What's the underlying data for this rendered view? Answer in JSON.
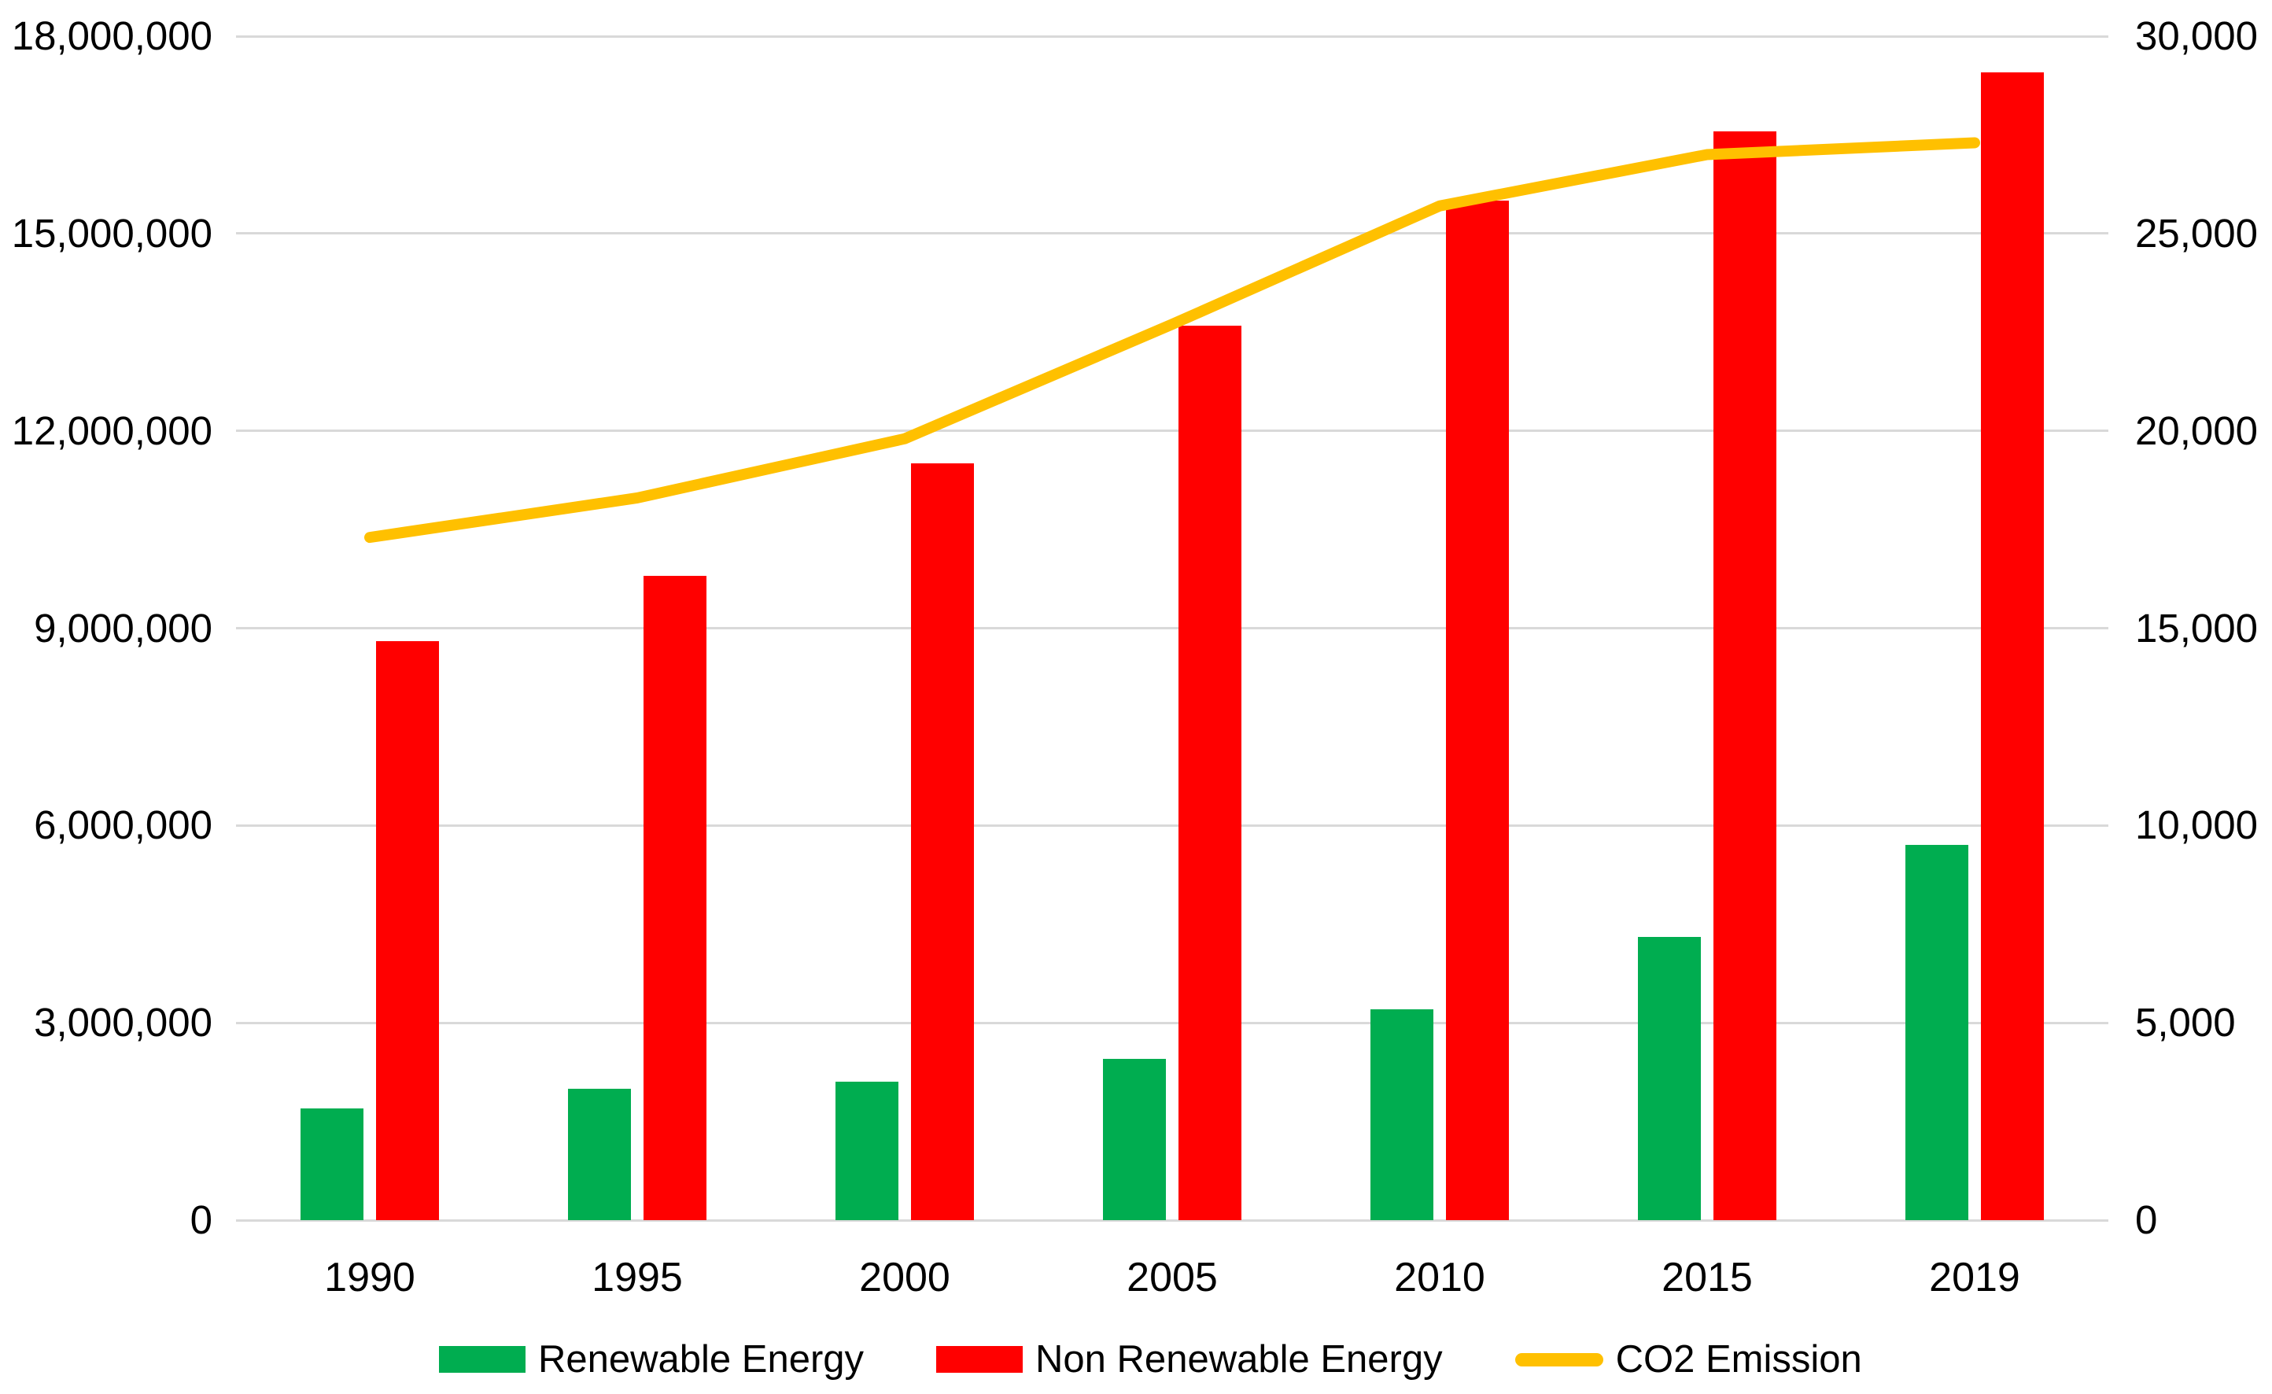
{
  "chart_data": {
    "type": "combo_bar_line",
    "categories": [
      "1990",
      "1995",
      "2000",
      "2005",
      "2010",
      "2015",
      "2019"
    ],
    "series": [
      {
        "name": "Renewable Energy",
        "type": "bar",
        "axis": "left",
        "color": "#00AD50",
        "values": [
          1700000,
          2000000,
          2100000,
          2450000,
          3200000,
          4300000,
          5700000
        ]
      },
      {
        "name": "Non Renewable Energy",
        "type": "bar",
        "axis": "left",
        "color": "#FF0000",
        "values": [
          8800000,
          9800000,
          11500000,
          13600000,
          15500000,
          16550000,
          17450000
        ]
      },
      {
        "name": "CO2 Emission",
        "type": "line",
        "axis": "right",
        "color": "#FFC000",
        "values": [
          17300,
          18300,
          19800,
          22700,
          25700,
          27000,
          27300
        ]
      }
    ],
    "left_axis": {
      "min": 0,
      "max": 18000000,
      "tick_step": 3000000,
      "tick_labels": [
        "0",
        "3,000,000",
        "6,000,000",
        "9,000,000",
        "12,000,000",
        "15,000,000",
        "18,000,000"
      ]
    },
    "right_axis": {
      "min": 0,
      "max": 30000,
      "tick_step": 5000,
      "tick_labels": [
        "0",
        "5,000",
        "10,000",
        "15,000",
        "20,000",
        "25,000",
        "30,000"
      ]
    },
    "grid": true,
    "gridline_color": "#D9D9D9",
    "background": "#FFFFFF",
    "legend_position": "bottom"
  }
}
